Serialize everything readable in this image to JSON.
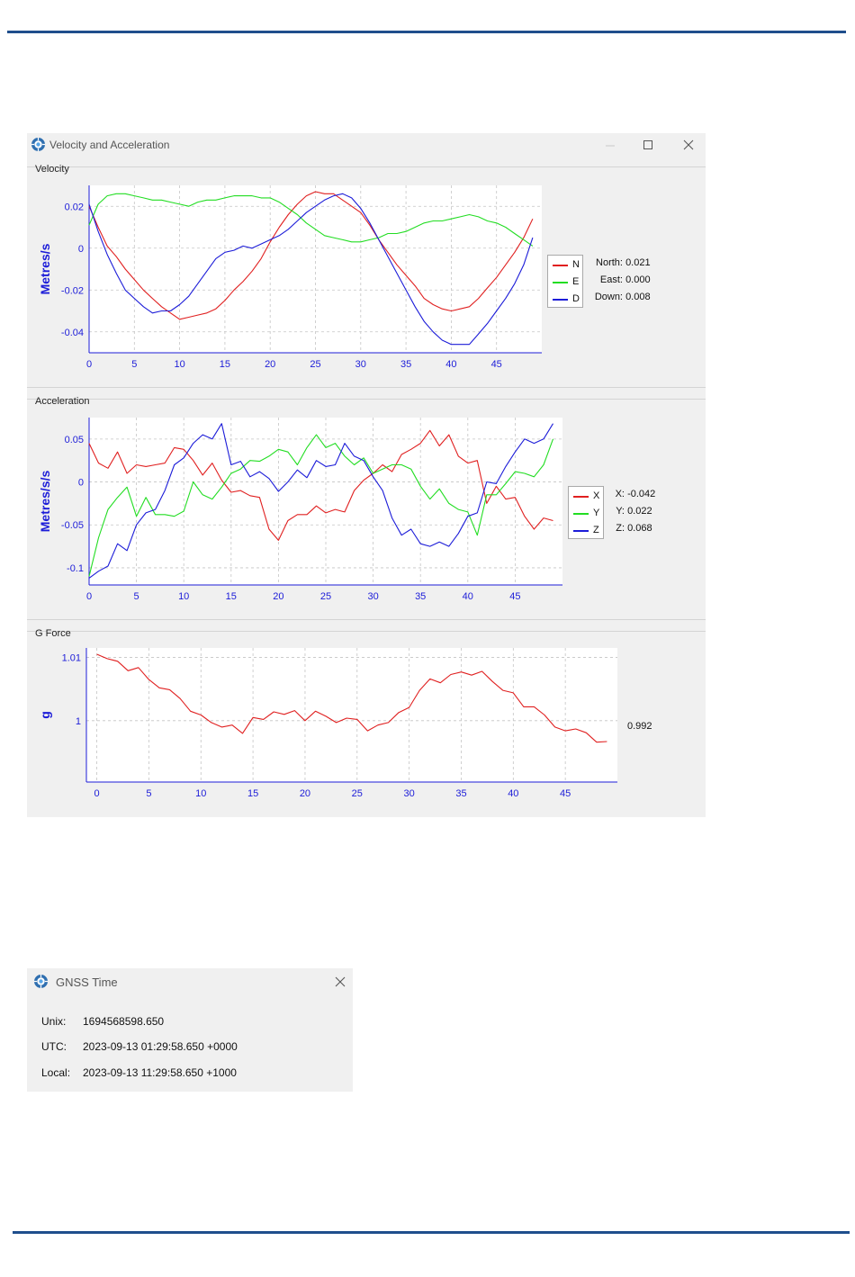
{
  "velocity_window": {
    "title": "Velocity and Acceleration",
    "icon": "app-logo-icon",
    "controls": [
      "minimize-icon",
      "maximize-icon",
      "close-icon"
    ]
  },
  "velocity": {
    "section_label": "Velocity",
    "legend": [
      "N",
      "E",
      "D"
    ],
    "readouts": [
      {
        "label": "North:",
        "value": "0.021"
      },
      {
        "label": "East:",
        "value": "0.000"
      },
      {
        "label": "Down:",
        "value": "0.008"
      }
    ]
  },
  "acceleration": {
    "section_label": "Acceleration",
    "legend": [
      "X",
      "Y",
      "Z"
    ],
    "readouts": [
      {
        "label": "X:",
        "value": "-0.042"
      },
      {
        "label": "Y:",
        "value": "0.022"
      },
      {
        "label": "Z:",
        "value": "0.068"
      }
    ]
  },
  "gforce": {
    "section_label": "G Force",
    "readout": "0.992"
  },
  "chart_data": [
    {
      "type": "line",
      "ylabel": "Metres/s",
      "xlim": [
        0,
        50
      ],
      "ylim": [
        -0.05,
        0.03
      ],
      "xticks": [
        0,
        5,
        10,
        15,
        20,
        25,
        30,
        35,
        40,
        45
      ],
      "xtick_labels": [
        "0",
        "5",
        "10",
        "15",
        "20",
        "25",
        "30",
        "35",
        "40",
        "45"
      ],
      "yticks": [
        0.02,
        0,
        -0.02,
        -0.04
      ],
      "ytick_labels": [
        "0.02",
        "0",
        "-0.02",
        "-0.04"
      ],
      "grid": true,
      "x": [
        0,
        1,
        2,
        3,
        4,
        5,
        6,
        7,
        8,
        9,
        10,
        11,
        12,
        13,
        14,
        15,
        16,
        17,
        18,
        19,
        20,
        21,
        22,
        23,
        24,
        25,
        26,
        27,
        28,
        29,
        30,
        31,
        32,
        33,
        34,
        35,
        36,
        37,
        38,
        39,
        40,
        41,
        42,
        43,
        44,
        45,
        46,
        47,
        48,
        49
      ],
      "series": [
        {
          "name": "N",
          "color": "#e02020",
          "values": [
            0.02,
            0.01,
            0.001,
            -0.004,
            -0.01,
            -0.015,
            -0.02,
            -0.024,
            -0.028,
            -0.031,
            -0.034,
            -0.033,
            -0.032,
            -0.031,
            -0.029,
            -0.025,
            -0.02,
            -0.016,
            -0.011,
            -0.005,
            0.003,
            0.01,
            0.016,
            0.021,
            0.025,
            0.027,
            0.026,
            0.026,
            0.023,
            0.02,
            0.017,
            0.011,
            0.004,
            -0.002,
            -0.008,
            -0.013,
            -0.018,
            -0.024,
            -0.027,
            -0.029,
            -0.03,
            -0.029,
            -0.028,
            -0.024,
            -0.019,
            -0.014,
            -0.008,
            -0.002,
            0.005,
            0.014
          ]
        },
        {
          "name": "E",
          "color": "#22dd22",
          "values": [
            0.011,
            0.021,
            0.025,
            0.026,
            0.026,
            0.025,
            0.024,
            0.023,
            0.023,
            0.022,
            0.021,
            0.02,
            0.022,
            0.023,
            0.023,
            0.024,
            0.025,
            0.025,
            0.025,
            0.024,
            0.024,
            0.022,
            0.019,
            0.016,
            0.012,
            0.009,
            0.006,
            0.005,
            0.004,
            0.003,
            0.003,
            0.004,
            0.005,
            0.007,
            0.007,
            0.008,
            0.01,
            0.012,
            0.013,
            0.013,
            0.014,
            0.015,
            0.016,
            0.015,
            0.013,
            0.012,
            0.01,
            0.007,
            0.004,
            0.001
          ]
        },
        {
          "name": "D",
          "color": "#1c1cd8",
          "values": [
            0.021,
            0.008,
            -0.003,
            -0.012,
            -0.02,
            -0.024,
            -0.028,
            -0.031,
            -0.03,
            -0.03,
            -0.027,
            -0.023,
            -0.017,
            -0.011,
            -0.005,
            -0.002,
            -0.001,
            0.001,
            0.0,
            0.002,
            0.004,
            0.006,
            0.009,
            0.013,
            0.017,
            0.02,
            0.023,
            0.025,
            0.026,
            0.024,
            0.019,
            0.012,
            0.004,
            -0.004,
            -0.012,
            -0.02,
            -0.028,
            -0.035,
            -0.04,
            -0.044,
            -0.046,
            -0.046,
            -0.046,
            -0.041,
            -0.036,
            -0.03,
            -0.024,
            -0.017,
            -0.008,
            0.005
          ]
        }
      ]
    },
    {
      "type": "line",
      "ylabel": "Metres/s/s",
      "xlim": [
        0,
        50
      ],
      "ylim": [
        -0.12,
        0.075
      ],
      "xticks": [
        0,
        5,
        10,
        15,
        20,
        25,
        30,
        35,
        40,
        45
      ],
      "xtick_labels": [
        "0",
        "5",
        "10",
        "15",
        "20",
        "25",
        "30",
        "35",
        "40",
        "45"
      ],
      "yticks": [
        0.05,
        0,
        -0.05,
        -0.1
      ],
      "ytick_labels": [
        "0.05",
        "0",
        "-0.05",
        "-0.1"
      ],
      "grid": true,
      "x": [
        0,
        1,
        2,
        3,
        4,
        5,
        6,
        7,
        8,
        9,
        10,
        11,
        12,
        13,
        14,
        15,
        16,
        17,
        18,
        19,
        20,
        21,
        22,
        23,
        24,
        25,
        26,
        27,
        28,
        29,
        30,
        31,
        32,
        33,
        34,
        35,
        36,
        37,
        38,
        39,
        40,
        41,
        42,
        43,
        44,
        45,
        46,
        47,
        48,
        49
      ],
      "series": [
        {
          "name": "X",
          "color": "#e02020",
          "values": [
            0.045,
            0.022,
            0.016,
            0.035,
            0.01,
            0.02,
            0.018,
            0.02,
            0.022,
            0.04,
            0.038,
            0.025,
            0.008,
            0.022,
            0.002,
            -0.012,
            -0.01,
            -0.016,
            -0.018,
            -0.055,
            -0.068,
            -0.045,
            -0.038,
            -0.038,
            -0.028,
            -0.036,
            -0.032,
            -0.035,
            -0.01,
            0.002,
            0.01,
            0.02,
            0.012,
            0.032,
            0.038,
            0.045,
            0.06,
            0.042,
            0.055,
            0.03,
            0.022,
            0.025,
            -0.025,
            -0.005,
            -0.02,
            -0.018,
            -0.04,
            -0.055,
            -0.042,
            -0.045
          ]
        },
        {
          "name": "Y",
          "color": "#22dd22",
          "values": [
            -0.11,
            -0.065,
            -0.032,
            -0.018,
            -0.006,
            -0.04,
            -0.018,
            -0.038,
            -0.038,
            -0.04,
            -0.034,
            0.0,
            -0.015,
            -0.02,
            -0.006,
            0.01,
            0.015,
            0.025,
            0.024,
            0.03,
            0.038,
            0.035,
            0.02,
            0.04,
            0.055,
            0.04,
            0.045,
            0.03,
            0.02,
            0.028,
            0.01,
            0.015,
            0.02,
            0.02,
            0.015,
            -0.005,
            -0.02,
            -0.008,
            -0.025,
            -0.032,
            -0.035,
            -0.062,
            -0.015,
            -0.015,
            -0.002,
            0.012,
            0.01,
            0.006,
            0.02,
            0.05
          ]
        },
        {
          "name": "Z",
          "color": "#1c1cd8",
          "values": [
            -0.112,
            -0.104,
            -0.098,
            -0.072,
            -0.08,
            -0.05,
            -0.036,
            -0.032,
            -0.01,
            0.02,
            0.028,
            0.045,
            0.055,
            0.05,
            0.068,
            0.02,
            0.024,
            0.006,
            0.012,
            0.004,
            -0.011,
            0.0,
            0.014,
            0.005,
            0.025,
            0.018,
            0.02,
            0.045,
            0.03,
            0.025,
            0.006,
            -0.01,
            -0.042,
            -0.062,
            -0.055,
            -0.072,
            -0.075,
            -0.07,
            -0.075,
            -0.06,
            -0.04,
            -0.036,
            0.0,
            -0.002,
            0.018,
            0.035,
            0.05,
            0.045,
            0.05,
            0.068
          ]
        }
      ]
    },
    {
      "type": "line",
      "ylabel": "g",
      "xlim": [
        -1,
        50
      ],
      "ylim": [
        0.9903,
        1.0115
      ],
      "xticks": [
        0,
        5,
        10,
        15,
        20,
        25,
        30,
        35,
        40,
        45
      ],
      "xtick_labels": [
        "0",
        "5",
        "10",
        "15",
        "20",
        "25",
        "30",
        "35",
        "40",
        "45"
      ],
      "yticks": [
        1.01,
        1.0
      ],
      "ytick_labels": [
        "1.01",
        "1"
      ],
      "grid": true,
      "x": [
        0,
        1,
        2,
        3,
        4,
        5,
        6,
        7,
        8,
        9,
        10,
        11,
        12,
        13,
        14,
        15,
        16,
        17,
        18,
        19,
        20,
        21,
        22,
        23,
        24,
        25,
        26,
        27,
        28,
        29,
        30,
        31,
        32,
        33,
        34,
        35,
        36,
        37,
        38,
        39,
        40,
        41,
        42,
        43,
        44,
        45,
        46,
        47,
        48,
        49
      ],
      "series": [
        {
          "name": "",
          "color": "#e02020",
          "values": [
            1.0105,
            1.0098,
            1.0094,
            1.0079,
            1.0084,
            1.0065,
            1.0052,
            1.0049,
            1.0035,
            1.0015,
            1.0009,
            0.9997,
            0.999,
            0.9993,
            0.998,
            1.0005,
            1.0002,
            1.0014,
            1.001,
            1.0016,
            1.0,
            1.0015,
            1.0007,
            0.9997,
            1.0004,
            1.0002,
            0.9984,
            0.9993,
            0.9997,
            1.0013,
            1.0021,
            1.0048,
            1.0066,
            1.006,
            1.0073,
            1.0077,
            1.0072,
            1.0078,
            1.0062,
            1.0048,
            1.0044,
            1.0022,
            1.0022,
            1.0009,
            0.999,
            0.9984,
            0.9987,
            0.9981,
            0.9966,
            0.9967
          ]
        }
      ]
    }
  ],
  "gnss_window": {
    "title": "GNSS Time",
    "rows": [
      {
        "label": "Unix:",
        "value": "1694568598.650"
      },
      {
        "label": "UTC:",
        "value": "2023-09-13 01:29:58.650 +0000"
      },
      {
        "label": "Local:",
        "value": "2023-09-13 11:29:58.650 +1000"
      }
    ]
  }
}
